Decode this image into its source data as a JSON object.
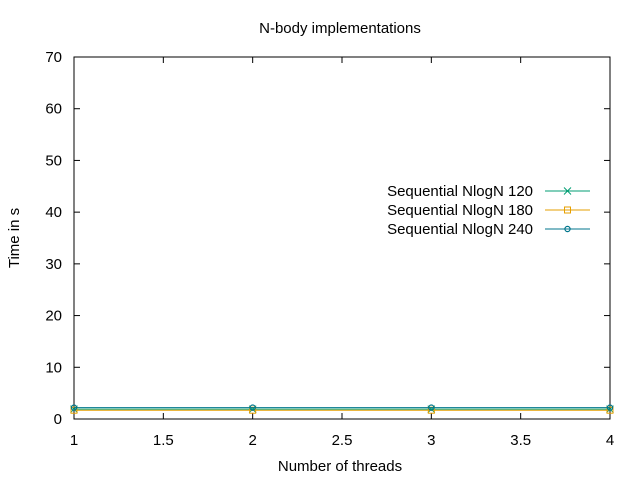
{
  "chart_data": {
    "type": "line",
    "title": "N-body implementations",
    "xlabel": "Number of threads",
    "ylabel": "Time in s",
    "xlim": [
      1,
      4
    ],
    "ylim": [
      0,
      70
    ],
    "x_ticks": [
      "1",
      "1.5",
      "2",
      "2.5",
      "3",
      "3.5",
      "4"
    ],
    "y_ticks": [
      "0",
      "10",
      "20",
      "30",
      "40",
      "50",
      "60",
      "70"
    ],
    "grid": false,
    "legend_position": "right",
    "x": [
      1,
      2,
      3,
      4
    ],
    "series": [
      {
        "name": "Sequential NlogN 120",
        "values": [
          1.9,
          1.9,
          1.9,
          1.9
        ],
        "color": "#009e73",
        "marker": "x"
      },
      {
        "name": "Sequential NlogN 180",
        "values": [
          1.7,
          1.7,
          1.7,
          1.7
        ],
        "color": "#e69f00",
        "marker": "square"
      },
      {
        "name": "Sequential NlogN 240",
        "values": [
          2.2,
          2.2,
          2.2,
          2.2
        ],
        "color": "#00768c",
        "marker": "circle"
      }
    ]
  }
}
